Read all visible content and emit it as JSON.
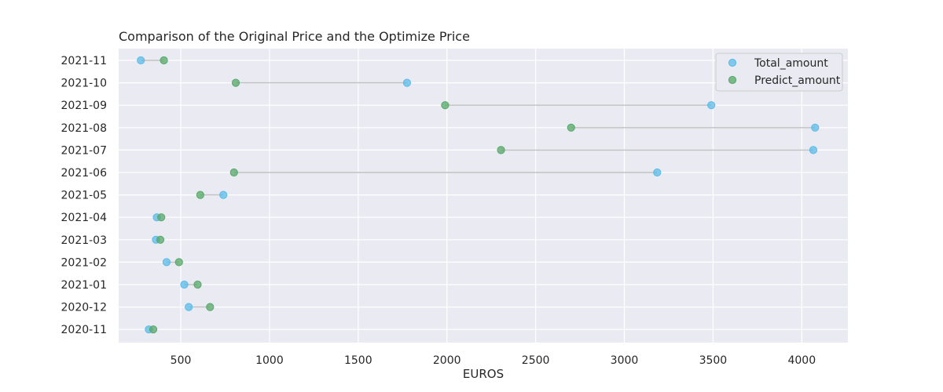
{
  "chart_data": {
    "type": "scatter",
    "title": "Comparison of the Original Price and the Optimize Price",
    "xlabel": "EUROS",
    "ylabel": "",
    "xlim": [
      150,
      4260
    ],
    "xticks": [
      500,
      1000,
      1500,
      2000,
      2500,
      3000,
      3500,
      4000
    ],
    "grid": true,
    "legend_position": "top-right",
    "categories": [
      "2020-11",
      "2020-12",
      "2021-01",
      "2021-02",
      "2021-03",
      "2021-04",
      "2021-05",
      "2021-06",
      "2021-07",
      "2021-08",
      "2021-09",
      "2021-10",
      "2021-11"
    ],
    "series": [
      {
        "name": "Total_amount",
        "color": "#5bbbe8",
        "values": [
          320,
          545,
          520,
          420,
          360,
          365,
          740,
          3185,
          4065,
          4075,
          3490,
          1775,
          275
        ]
      },
      {
        "name": "Predict_amount",
        "color": "#55a868",
        "values": [
          345,
          665,
          595,
          490,
          385,
          390,
          610,
          800,
          2305,
          2700,
          1990,
          810,
          405
        ]
      }
    ]
  },
  "colors": {
    "plot_background": "#eaeaf2",
    "grid": "#ffffff",
    "connector": "#c0c0c0"
  }
}
